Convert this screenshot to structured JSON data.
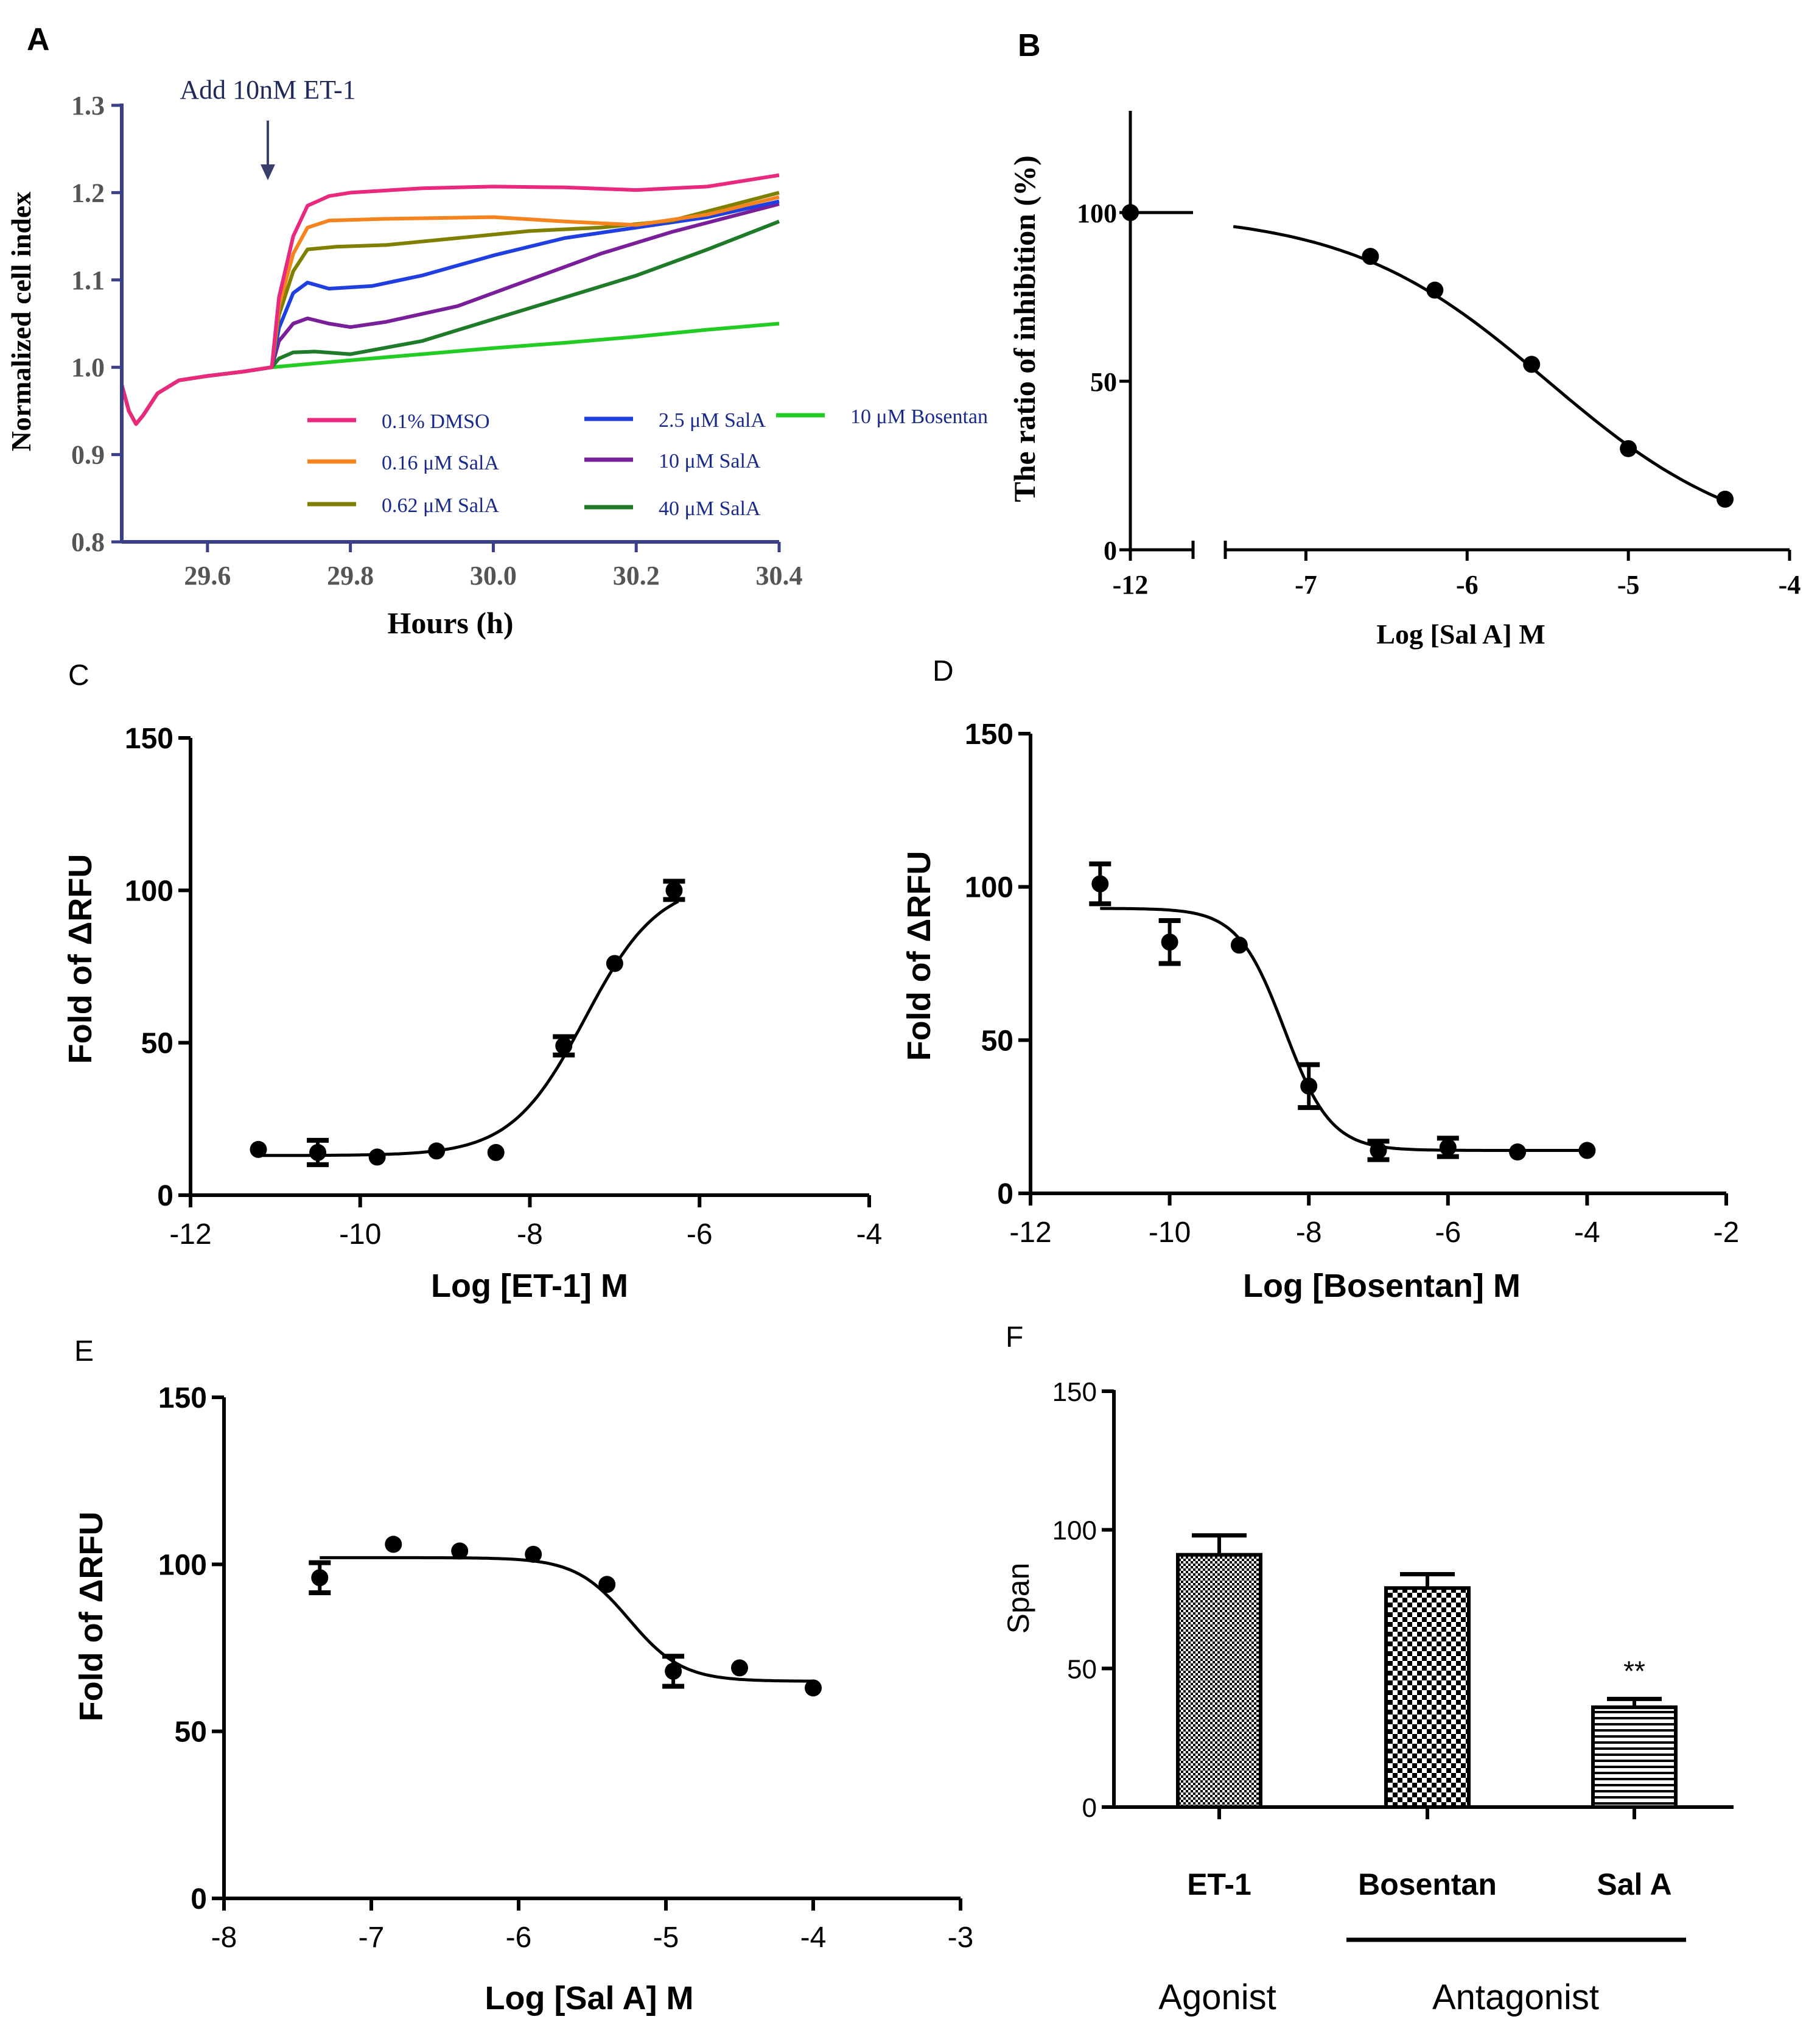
{
  "panels": [
    {
      "id": "A",
      "letter": "A",
      "type": "line",
      "ylabel": "Normalized cell index",
      "xlabel": "Hours (h)",
      "xlim": [
        29.48,
        30.4
      ],
      "ylim": [
        0.8,
        1.3
      ],
      "xticks": [
        29.6,
        29.8,
        30.0,
        30.2,
        30.4
      ],
      "xtick_labels": [
        "29.6",
        "29.8",
        "30.0",
        "30.2",
        "30.4"
      ],
      "yticks": [
        0.8,
        0.9,
        1.0,
        1.1,
        1.2,
        1.3
      ],
      "ytick_labels": [
        "0.8",
        "0.9",
        "1.0",
        "1.1",
        "1.2",
        "1.3"
      ],
      "annotation": {
        "text": "Add 10nM ET-1",
        "x": 29.69
      },
      "shared_prefix": [
        [
          29.48,
          0.98
        ],
        [
          29.49,
          0.95
        ],
        [
          29.5,
          0.935
        ],
        [
          29.51,
          0.945
        ],
        [
          29.53,
          0.97
        ],
        [
          29.56,
          0.985
        ],
        [
          29.6,
          0.99
        ],
        [
          29.65,
          0.995
        ],
        [
          29.69,
          1.0
        ]
      ],
      "series": [
        {
          "name": "0.1% DMSO",
          "color": "#e8297e",
          "points": [
            [
              29.69,
              1.0
            ],
            [
              29.7,
              1.08
            ],
            [
              29.72,
              1.15
            ],
            [
              29.74,
              1.185
            ],
            [
              29.77,
              1.196
            ],
            [
              29.8,
              1.2
            ],
            [
              29.9,
              1.205
            ],
            [
              30.0,
              1.207
            ],
            [
              30.1,
              1.206
            ],
            [
              30.2,
              1.203
            ],
            [
              30.3,
              1.207
            ],
            [
              30.4,
              1.22
            ]
          ]
        },
        {
          "name": "0.16 μM SalA",
          "color": "#f5841f",
          "points": [
            [
              29.69,
              1.0
            ],
            [
              29.7,
              1.07
            ],
            [
              29.72,
              1.13
            ],
            [
              29.74,
              1.16
            ],
            [
              29.77,
              1.168
            ],
            [
              29.85,
              1.17
            ],
            [
              30.0,
              1.172
            ],
            [
              30.1,
              1.167
            ],
            [
              30.2,
              1.163
            ],
            [
              30.3,
              1.175
            ],
            [
              30.4,
              1.195
            ]
          ]
        },
        {
          "name": "0.62 μM SalA",
          "color": "#808000",
          "points": [
            [
              29.69,
              1.0
            ],
            [
              29.7,
              1.06
            ],
            [
              29.72,
              1.11
            ],
            [
              29.74,
              1.135
            ],
            [
              29.78,
              1.138
            ],
            [
              29.85,
              1.14
            ],
            [
              29.95,
              1.148
            ],
            [
              30.05,
              1.156
            ],
            [
              30.15,
              1.16
            ],
            [
              30.25,
              1.168
            ],
            [
              30.4,
              1.2
            ]
          ]
        },
        {
          "name": "2.5 μM SalA",
          "color": "#1f3fe0",
          "points": [
            [
              29.69,
              1.0
            ],
            [
              29.7,
              1.045
            ],
            [
              29.72,
              1.085
            ],
            [
              29.74,
              1.097
            ],
            [
              29.77,
              1.09
            ],
            [
              29.83,
              1.093
            ],
            [
              29.9,
              1.105
            ],
            [
              30.0,
              1.128
            ],
            [
              30.1,
              1.148
            ],
            [
              30.2,
              1.16
            ],
            [
              30.3,
              1.172
            ],
            [
              30.4,
              1.19
            ]
          ]
        },
        {
          "name": "10 μM SalA",
          "color": "#7a1f9a",
          "points": [
            [
              29.69,
              1.0
            ],
            [
              29.7,
              1.03
            ],
            [
              29.72,
              1.05
            ],
            [
              29.74,
              1.056
            ],
            [
              29.77,
              1.05
            ],
            [
              29.8,
              1.046
            ],
            [
              29.85,
              1.052
            ],
            [
              29.95,
              1.07
            ],
            [
              30.05,
              1.1
            ],
            [
              30.15,
              1.13
            ],
            [
              30.25,
              1.155
            ],
            [
              30.4,
              1.187
            ]
          ]
        },
        {
          "name": "40 μM SalA",
          "color": "#1f7a2a",
          "points": [
            [
              29.69,
              1.0
            ],
            [
              29.7,
              1.01
            ],
            [
              29.72,
              1.017
            ],
            [
              29.75,
              1.018
            ],
            [
              29.8,
              1.015
            ],
            [
              29.9,
              1.03
            ],
            [
              30.0,
              1.055
            ],
            [
              30.1,
              1.08
            ],
            [
              30.2,
              1.105
            ],
            [
              30.3,
              1.135
            ],
            [
              30.4,
              1.167
            ]
          ]
        },
        {
          "name": "10 μM Bosentan",
          "color": "#22cc22",
          "points": [
            [
              29.69,
              1.0
            ],
            [
              29.8,
              1.008
            ],
            [
              29.9,
              1.015
            ],
            [
              30.0,
              1.022
            ],
            [
              30.1,
              1.028
            ],
            [
              30.2,
              1.035
            ],
            [
              30.3,
              1.043
            ],
            [
              30.4,
              1.05
            ]
          ]
        }
      ]
    },
    {
      "id": "B",
      "letter": "B",
      "type": "scatter",
      "ylabel": "The ratio of inhibition (%)",
      "xlabel": "Log [Sal A] M",
      "xlim": [
        -7.5,
        -4.0
      ],
      "ylim": [
        0,
        130
      ],
      "xticks": [
        -7,
        -6,
        -5,
        -4
      ],
      "xtick_labels": [
        "-7",
        "-6",
        "-5",
        "-4"
      ],
      "break_tick_label": "-12",
      "yticks": [
        0,
        50,
        100
      ],
      "ytick_labels": [
        "0",
        "50",
        "100"
      ],
      "control_point": {
        "x": -12,
        "y": 100
      },
      "points": [
        [
          -6.6,
          87
        ],
        [
          -6.2,
          77
        ],
        [
          -5.6,
          55
        ],
        [
          -5.0,
          30
        ],
        [
          -4.4,
          15
        ]
      ],
      "fit": {
        "top": 100,
        "bottom": 0,
        "logEC50": -5.5,
        "hill": -0.7
      }
    },
    {
      "id": "C",
      "letter": "C",
      "type": "scatter",
      "ylabel": "Fold of ΔRFU",
      "xlabel": "Log [ET-1] M",
      "xlim": [
        -12,
        -4
      ],
      "ylim": [
        0,
        150
      ],
      "xticks": [
        -12,
        -10,
        -8,
        -6,
        -4
      ],
      "xtick_labels": [
        "-12",
        "-10",
        "-8",
        "-6",
        "-4"
      ],
      "yticks": [
        0,
        50,
        100,
        150
      ],
      "ytick_labels": [
        "0",
        "50",
        "100",
        "150"
      ],
      "points": [
        [
          -11.2,
          15,
          0
        ],
        [
          -10.5,
          14,
          4
        ],
        [
          -9.8,
          12.5,
          0
        ],
        [
          -9.1,
          14.5,
          0
        ],
        [
          -8.4,
          14,
          0
        ],
        [
          -7.6,
          49,
          3
        ],
        [
          -7.0,
          76,
          0
        ],
        [
          -6.3,
          100,
          3
        ]
      ],
      "fit": {
        "top": 103,
        "bottom": 13,
        "logEC50": -7.35,
        "hill": 1.0
      }
    },
    {
      "id": "D",
      "letter": "D",
      "type": "scatter",
      "ylabel": "Fold of ΔRFU",
      "xlabel": "Log [Bosentan] M",
      "xlim": [
        -12,
        -2
      ],
      "ylim": [
        0,
        150
      ],
      "xticks": [
        -12,
        -10,
        -8,
        -6,
        -4,
        -2
      ],
      "xtick_labels": [
        "-12",
        "-10",
        "-8",
        "-6",
        "-4",
        "-2"
      ],
      "yticks": [
        0,
        50,
        100,
        150
      ],
      "ytick_labels": [
        "0",
        "50",
        "100",
        "150"
      ],
      "points": [
        [
          -11,
          101,
          6.5
        ],
        [
          -10,
          82,
          7
        ],
        [
          -9,
          81,
          0
        ],
        [
          -8,
          35,
          7
        ],
        [
          -7,
          14,
          3
        ],
        [
          -6,
          15,
          3
        ],
        [
          -5,
          13.5,
          0
        ],
        [
          -4,
          14,
          0
        ]
      ],
      "fit": {
        "top": 93,
        "bottom": 14,
        "logEC50": -8.35,
        "hill": -1.3
      }
    },
    {
      "id": "E",
      "letter": "E",
      "type": "scatter",
      "ylabel": "Fold of ΔRFU",
      "xlabel": "Log [Sal A] M",
      "xlim": [
        -8,
        -3
      ],
      "ylim": [
        0,
        150
      ],
      "xticks": [
        -8,
        -7,
        -6,
        -5,
        -4,
        -3
      ],
      "xtick_labels": [
        "-8",
        "-7",
        "-6",
        "-5",
        "-4",
        "-3"
      ],
      "yticks": [
        0,
        50,
        100,
        150
      ],
      "ytick_labels": [
        "0",
        "50",
        "100",
        "150"
      ],
      "points": [
        [
          -7.35,
          96,
          4.5
        ],
        [
          -6.85,
          106,
          0
        ],
        [
          -6.4,
          104,
          0
        ],
        [
          -5.9,
          103,
          0
        ],
        [
          -5.4,
          94,
          0
        ],
        [
          -4.95,
          68,
          4.5
        ],
        [
          -4.5,
          69,
          0
        ],
        [
          -4.0,
          63,
          0
        ]
      ],
      "fit": {
        "top": 102,
        "bottom": 65,
        "logEC50": -5.25,
        "hill": -2.4
      }
    },
    {
      "id": "F",
      "letter": "F",
      "type": "bar",
      "ylabel": "Span",
      "ylim": [
        0,
        150
      ],
      "yticks": [
        0,
        50,
        100,
        150
      ],
      "ytick_labels": [
        "0",
        "50",
        "100",
        "150"
      ],
      "categories": [
        "ET-1",
        "Bosentan",
        "Sal A"
      ],
      "values": [
        91,
        79,
        36
      ],
      "errors": [
        7,
        5,
        3
      ],
      "patterns": [
        "fine-check",
        "coarse-check",
        "horizontal"
      ],
      "annotation": {
        "category": "Sal A",
        "text": "**"
      },
      "group_labels": {
        "agonist": "Agonist",
        "antagonist": "Antagonist"
      }
    }
  ]
}
